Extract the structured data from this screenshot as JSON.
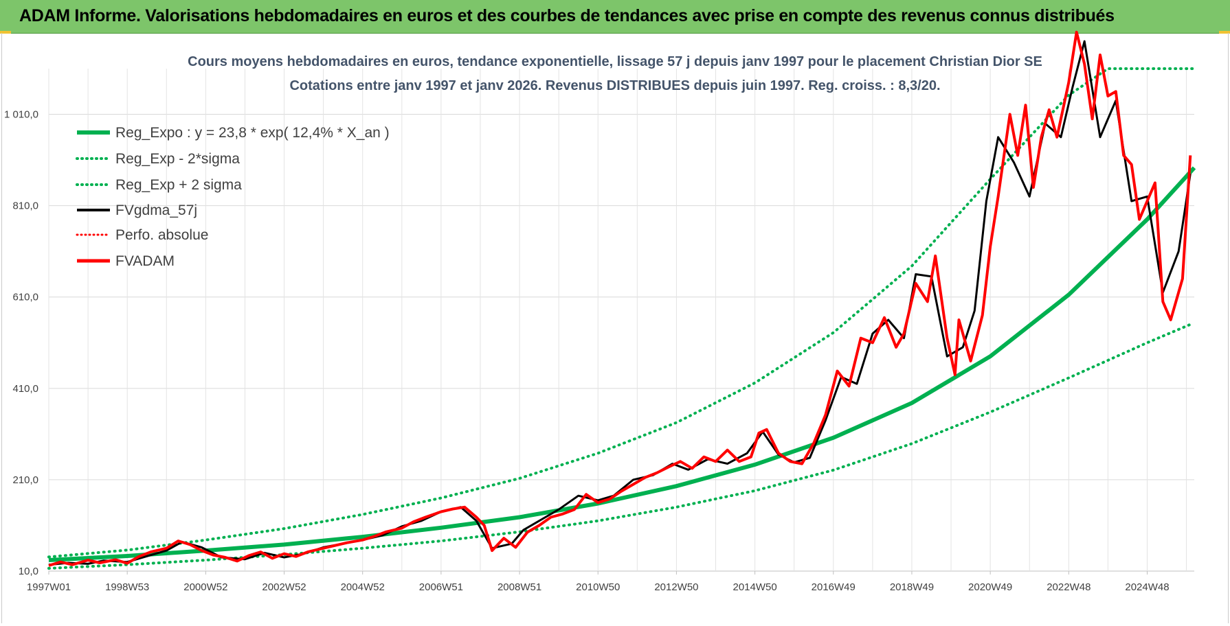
{
  "banner": {
    "title": "ADAM Informe. Valorisations hebdomadaires en euros et des courbes de tendances avec prise en compte des revenus connus distribués"
  },
  "colors": {
    "banner": "#7dc56a",
    "trend": "#00b050",
    "fvgdma": "#000000",
    "fvadam": "#ff0000",
    "grid": "#d9d9d9"
  },
  "chart_data": {
    "type": "line",
    "title": "Cours moyens hebdomadaires en euros, tendance exponentielle, lissage 57 j depuis janv 1997 pour le placement Christian Dior SE",
    "subtitle": "Cotations entre janv 1997 et janv 2026. Revenus DISTRIBUES depuis juin 1997. Reg. croiss. : 8,3/20.",
    "xlabel": "",
    "ylabel": "",
    "ylim": [
      10,
      1110
    ],
    "xlim": [
      1997.0,
      2026.2
    ],
    "x_tick_labels": [
      {
        "x": 1997.0,
        "label": "1997W01"
      },
      {
        "x": 1999.0,
        "label": "1998W53"
      },
      {
        "x": 2001.0,
        "label": "2000W52"
      },
      {
        "x": 2003.0,
        "label": "2002W52"
      },
      {
        "x": 2005.0,
        "label": "2004W52"
      },
      {
        "x": 2007.0,
        "label": "2006W51"
      },
      {
        "x": 2009.0,
        "label": "2008W51"
      },
      {
        "x": 2011.0,
        "label": "2010W50"
      },
      {
        "x": 2013.0,
        "label": "2012W50"
      },
      {
        "x": 2015.0,
        "label": "2014W50"
      },
      {
        "x": 2017.0,
        "label": "2016W49"
      },
      {
        "x": 2019.0,
        "label": "2018W49"
      },
      {
        "x": 2021.0,
        "label": "2020W49"
      },
      {
        "x": 2023.0,
        "label": "2022W48"
      },
      {
        "x": 2025.0,
        "label": "2024W48"
      }
    ],
    "y_ticks": [
      {
        "v": 10,
        "label": "10,0"
      },
      {
        "v": 210,
        "label": "210,0"
      },
      {
        "v": 410,
        "label": "410,0"
      },
      {
        "v": 610,
        "label": "610,0"
      },
      {
        "v": 810,
        "label": "810,0"
      },
      {
        "v": 1010,
        "label": "1 010,0"
      }
    ],
    "legend_position": "top-left",
    "series": [
      {
        "name": "Reg_Expo : y = 23,8 * exp( 12,4% *  X_an )",
        "style": "thick-solid-green",
        "x": [
          1997,
          1999,
          2001,
          2003,
          2005,
          2007,
          2009,
          2011,
          2013,
          2015,
          2017,
          2019,
          2021,
          2023,
          2025,
          2026.2
        ],
        "values": [
          34,
          43,
          55,
          68,
          85,
          105,
          128,
          158,
          196,
          243,
          302,
          378,
          480,
          615,
          780,
          893
        ]
      },
      {
        "name": "Reg_Exp - 2*sigma",
        "style": "dotted-green",
        "x": [
          1997,
          1999,
          2001,
          2003,
          2005,
          2007,
          2009,
          2011,
          2013,
          2015,
          2017,
          2019,
          2021,
          2023,
          2025,
          2026.1
        ],
        "values": [
          16,
          24,
          34,
          46,
          60,
          76,
          96,
          120,
          150,
          186,
          231,
          289,
          358,
          433,
          510,
          550
        ]
      },
      {
        "name": "Reg_Exp + 2 sigma",
        "style": "dotted-green",
        "x": [
          1997,
          1999,
          2001,
          2003,
          2005,
          2007,
          2009,
          2011,
          2013,
          2015,
          2017,
          2019,
          2021,
          2023,
          2024.0,
          2026.2
        ],
        "values": [
          41,
          56,
          78,
          103,
          134,
          170,
          213,
          268,
          335,
          422,
          532,
          678,
          868,
          1052,
          1110,
          1110
        ]
      },
      {
        "name": "FVgdma_57j",
        "style": "solid-black",
        "x": [
          1997.0,
          1997.5,
          1998.0,
          1998.4,
          1999.0,
          1999.4,
          2000.0,
          2000.4,
          2000.9,
          2001.4,
          2002.0,
          2002.5,
          2003.0,
          2003.5,
          2004.0,
          2004.5,
          2005.0,
          2005.5,
          2006.0,
          2006.5,
          2007.0,
          2007.5,
          2007.9,
          2008.3,
          2008.8,
          2009.1,
          2009.6,
          2010.0,
          2010.5,
          2011.0,
          2011.4,
          2011.9,
          2012.4,
          2012.9,
          2013.3,
          2013.8,
          2014.3,
          2014.8,
          2015.2,
          2015.6,
          2016.0,
          2016.4,
          2016.8,
          2017.2,
          2017.6,
          2018.0,
          2018.4,
          2018.8,
          2019.1,
          2019.5,
          2019.9,
          2020.3,
          2020.6,
          2020.9,
          2021.2,
          2021.6,
          2022.0,
          2022.4,
          2022.8,
          2023.1,
          2023.4,
          2023.8,
          2024.2,
          2024.6,
          2025.0,
          2025.4,
          2025.8,
          2026.1
        ],
        "values": [
          24,
          28,
          26,
          33,
          30,
          40,
          55,
          74,
          62,
          40,
          36,
          50,
          40,
          48,
          62,
          70,
          78,
          88,
          108,
          120,
          140,
          150,
          120,
          60,
          70,
          100,
          125,
          145,
          175,
          165,
          175,
          210,
          220,
          245,
          232,
          255,
          245,
          268,
          315,
          265,
          248,
          258,
          340,
          435,
          420,
          530,
          560,
          520,
          660,
          655,
          480,
          500,
          580,
          820,
          960,
          905,
          830,
          990,
          960,
          1070,
          1170,
          960,
          1040,
          820,
          830,
          620,
          710,
          880
        ]
      },
      {
        "name": "Perfo. absolue",
        "style": "dotted-red",
        "x": [],
        "values": []
      },
      {
        "name": "FVADAM",
        "style": "thick-solid-red",
        "x": [
          1997.0,
          1997.3,
          1997.6,
          1998.0,
          1998.3,
          1998.7,
          1999.0,
          1999.3,
          1999.6,
          2000.0,
          2000.3,
          2000.6,
          2000.9,
          2001.2,
          2001.5,
          2001.8,
          2002.1,
          2002.4,
          2002.7,
          2003.0,
          2003.3,
          2003.6,
          2004.0,
          2004.3,
          2004.6,
          2005.0,
          2005.3,
          2005.6,
          2006.0,
          2006.3,
          2006.6,
          2007.0,
          2007.3,
          2007.6,
          2007.9,
          2008.1,
          2008.3,
          2008.6,
          2008.9,
          2009.2,
          2009.5,
          2009.8,
          2010.1,
          2010.4,
          2010.7,
          2011.0,
          2011.3,
          2011.6,
          2011.9,
          2012.2,
          2012.5,
          2012.8,
          2013.1,
          2013.4,
          2013.7,
          2014.0,
          2014.3,
          2014.6,
          2014.9,
          2015.1,
          2015.3,
          2015.6,
          2015.9,
          2016.2,
          2016.5,
          2016.8,
          2017.1,
          2017.4,
          2017.7,
          2018.0,
          2018.3,
          2018.6,
          2018.8,
          2019.1,
          2019.4,
          2019.6,
          2019.9,
          2020.1,
          2020.2,
          2020.5,
          2020.8,
          2021.0,
          2021.2,
          2021.5,
          2021.7,
          2021.9,
          2022.1,
          2022.3,
          2022.5,
          2022.7,
          2023.0,
          2023.2,
          2023.4,
          2023.6,
          2023.8,
          2024.0,
          2024.2,
          2024.4,
          2024.6,
          2024.8,
          2025.0,
          2025.2,
          2025.4,
          2025.6,
          2025.9,
          2026.1
        ],
        "values": [
          22,
          30,
          24,
          34,
          28,
          35,
          27,
          42,
          52,
          60,
          76,
          68,
          55,
          45,
          40,
          32,
          44,
          52,
          38,
          48,
          42,
          52,
          60,
          66,
          72,
          78,
          86,
          96,
          104,
          118,
          128,
          140,
          146,
          150,
          128,
          110,
          55,
          82,
          62,
          95,
          110,
          128,
          135,
          145,
          178,
          160,
          168,
          185,
          200,
          215,
          225,
          238,
          250,
          235,
          260,
          250,
          275,
          250,
          260,
          312,
          320,
          268,
          250,
          245,
          290,
          352,
          448,
          415,
          520,
          510,
          565,
          500,
          530,
          640,
          600,
          700,
          520,
          440,
          560,
          470,
          570,
          720,
          830,
          1010,
          920,
          1030,
          850,
          960,
          1020,
          960,
          1080,
          1190,
          1120,
          1000,
          1140,
          1050,
          1060,
          920,
          900,
          780,
          820,
          860,
          600,
          560,
          650,
          920
        ]
      }
    ]
  }
}
